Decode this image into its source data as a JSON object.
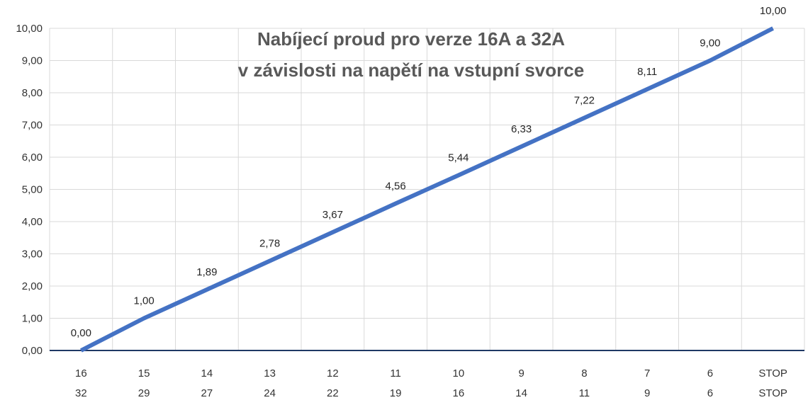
{
  "chart_data": {
    "type": "line",
    "title_lines": [
      "Nabíjecí proud pro verze 16A a 32A",
      "v závislosti na napětí na vstupní svorce"
    ],
    "categories": [
      [
        "16",
        "32"
      ],
      [
        "15",
        "29"
      ],
      [
        "14",
        "27"
      ],
      [
        "13",
        "24"
      ],
      [
        "12",
        "22"
      ],
      [
        "11",
        "19"
      ],
      [
        "10",
        "16"
      ],
      [
        "9",
        "14"
      ],
      [
        "8",
        "11"
      ],
      [
        "7",
        "9"
      ],
      [
        "6",
        "6"
      ],
      [
        "STOP",
        "STOP"
      ]
    ],
    "x_first_row": [
      "16",
      "15",
      "14",
      "13",
      "12",
      "11",
      "10",
      "9",
      "8",
      "7",
      "6",
      "STOP"
    ],
    "x_second_row": [
      "32",
      "29",
      "27",
      "24",
      "22",
      "19",
      "16",
      "14",
      "11",
      "9",
      "6",
      "STOP"
    ],
    "series": [
      {
        "values": [
          0.0,
          1.0,
          1.89,
          2.78,
          3.67,
          4.56,
          5.44,
          6.33,
          7.22,
          8.11,
          9.0,
          10.0
        ],
        "value_labels": [
          "0,00",
          "1,00",
          "1,89",
          "2,78",
          "3,67",
          "4,56",
          "5,44",
          "6,33",
          "7,22",
          "8,11",
          "9,00",
          "10,00"
        ]
      }
    ],
    "ylim": [
      0,
      10
    ],
    "y_ticks": [
      0,
      1,
      2,
      3,
      4,
      5,
      6,
      7,
      8,
      9,
      10
    ],
    "y_tick_labels": [
      "0,00",
      "1,00",
      "2,00",
      "3,00",
      "4,00",
      "5,00",
      "6,00",
      "7,00",
      "8,00",
      "9,00",
      "10,00"
    ],
    "grid": true,
    "colors": {
      "line": "#4472C4",
      "grid": "#D9D9D9",
      "axis": "#1F3864",
      "title": "#595959"
    }
  }
}
